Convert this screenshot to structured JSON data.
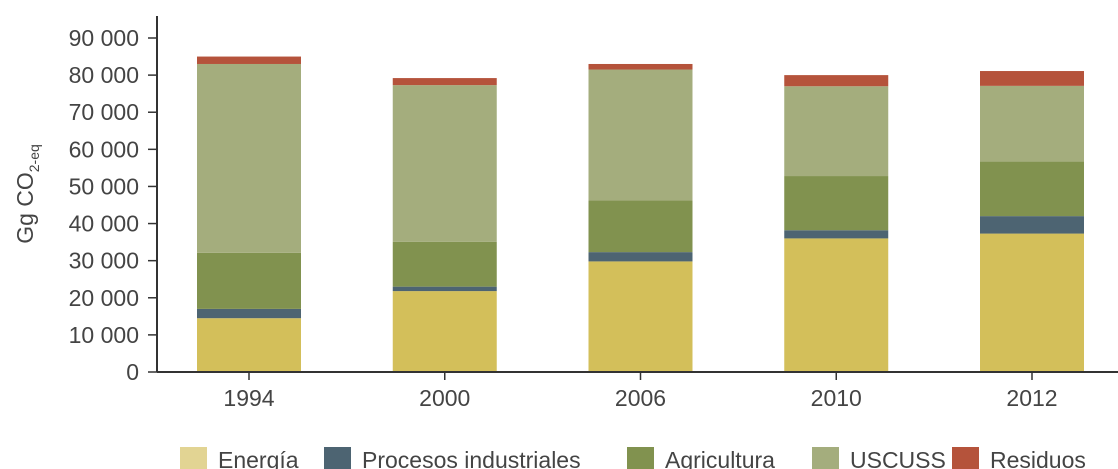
{
  "chart_data": {
    "type": "bar",
    "stacked": true,
    "categories": [
      "1994",
      "2000",
      "2006",
      "2010",
      "2012"
    ],
    "series": [
      {
        "name": "Energía",
        "color": "#d3bf5a",
        "legend_color": "#e2d493",
        "values": [
          14500,
          21800,
          29800,
          36000,
          37300
        ]
      },
      {
        "name": "Procesos industriales",
        "color": "#4d6472",
        "values": [
          2500,
          1200,
          2500,
          2200,
          4700
        ]
      },
      {
        "name": "Agricultura",
        "color": "#81924f",
        "values": [
          15100,
          12100,
          13900,
          14600,
          14700
        ]
      },
      {
        "name": "USCUSS",
        "color": "#a4ad7d",
        "values": [
          50900,
          42200,
          35300,
          24200,
          20400
        ]
      },
      {
        "name": "Residuos",
        "color": "#b5533b",
        "values": [
          2000,
          1900,
          1500,
          3000,
          4000
        ]
      }
    ],
    "ylim": [
      0,
      90000
    ],
    "yticks": [
      0,
      10000,
      20000,
      30000,
      40000,
      50000,
      60000,
      70000,
      80000,
      90000
    ],
    "ytick_labels": [
      "0",
      "10 000",
      "20 000",
      "30 000",
      "40 000",
      "50 000",
      "60 000",
      "70 000",
      "80 000",
      "90 000"
    ],
    "ylabel_main": "Gg CO",
    "ylabel_sub": "2-eq",
    "legend_position": "bottom",
    "grid": false
  }
}
